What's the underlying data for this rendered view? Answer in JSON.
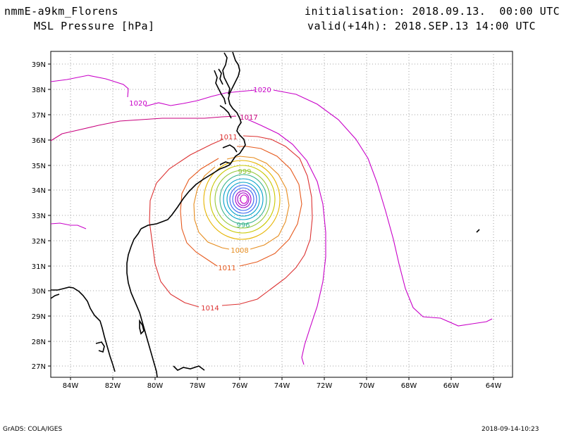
{
  "header": {
    "model": "nmmE-a9km_Florens",
    "field": "MSL Pressure [hPa]",
    "init": "initialisation: 2018.09.13.  00:00 UTC",
    "valid": "valid(+14h): 2018.SEP.13 14:00 UTC"
  },
  "footer": {
    "left": "GrADS: COLA/IGES",
    "right": "2018-09-14-10:23"
  },
  "map": {
    "lon_labels": [
      "84W",
      "82W",
      "80W",
      "78W",
      "76W",
      "74W",
      "72W",
      "70W",
      "68W",
      "66W",
      "64W"
    ],
    "lat_labels": [
      "39N",
      "38N",
      "37N",
      "36N",
      "35N",
      "34N",
      "33N",
      "32N",
      "31N",
      "30N",
      "29N",
      "28N",
      "27N"
    ],
    "lon_range": [
      -85,
      -62.7
    ],
    "lat_range": [
      26.5,
      39.5
    ]
  },
  "contours": {
    "labels": [
      "1020",
      "1020",
      "1017",
      "1011",
      "1008",
      "1014",
      "999",
      "996",
      "1011"
    ],
    "colors": {
      "1020": "#c800c8",
      "1017": "#c8007d",
      "1014": "#dc3232",
      "1011": "#e65a1e",
      "1008": "#e68c1e",
      "1005": "#e6b400",
      "1002": "#c8c800",
      "999": "#96c83c",
      "996": "#3cb48c",
      "mid": "#00a0c8",
      "inner": "#3264f0",
      "core": "#a000c8",
      "center": "#c800c8",
      "coast": "#000000"
    }
  }
}
